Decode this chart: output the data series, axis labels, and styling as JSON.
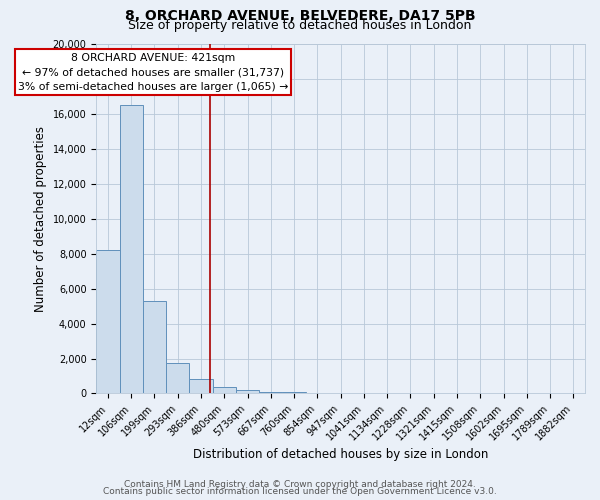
{
  "title_line1": "8, ORCHARD AVENUE, BELVEDERE, DA17 5PB",
  "title_line2": "Size of property relative to detached houses in London",
  "xlabel": "Distribution of detached houses by size in London",
  "ylabel": "Number of detached properties",
  "bar_labels": [
    "12sqm",
    "106sqm",
    "199sqm",
    "293sqm",
    "386sqm",
    "480sqm",
    "573sqm",
    "667sqm",
    "760sqm",
    "854sqm",
    "947sqm",
    "1041sqm",
    "1134sqm",
    "1228sqm",
    "1321sqm",
    "1415sqm",
    "1508sqm",
    "1602sqm",
    "1695sqm",
    "1789sqm",
    "1882sqm"
  ],
  "bar_values": [
    8200,
    16500,
    5300,
    1750,
    800,
    350,
    175,
    100,
    75,
    0,
    0,
    0,
    0,
    0,
    0,
    0,
    0,
    0,
    0,
    0,
    0
  ],
  "bar_color": "#ccdcec",
  "bar_edge_color": "#6090bb",
  "vline_color": "#aa0000",
  "annotation_line1": "8 ORCHARD AVENUE: 421sqm",
  "annotation_line2": "← 97% of detached houses are smaller (31,737)",
  "annotation_line3": "3% of semi-detached houses are larger (1,065) →",
  "annotation_box_color": "#ffffff",
  "annotation_box_edge": "#cc0000",
  "ylim": [
    0,
    20000
  ],
  "yticks": [
    0,
    2000,
    4000,
    6000,
    8000,
    10000,
    12000,
    14000,
    16000,
    18000,
    20000
  ],
  "footer_line1": "Contains HM Land Registry data © Crown copyright and database right 2024.",
  "footer_line2": "Contains public sector information licensed under the Open Government Licence v3.0.",
  "bg_color": "#eaf0f8",
  "plot_bg_color": "#eaf0f8",
  "grid_color": "#b8c8d8",
  "title_fontsize": 10,
  "subtitle_fontsize": 9,
  "label_fontsize": 8.5,
  "tick_fontsize": 7,
  "footer_fontsize": 6.5,
  "annotation_fontsize": 7.8
}
